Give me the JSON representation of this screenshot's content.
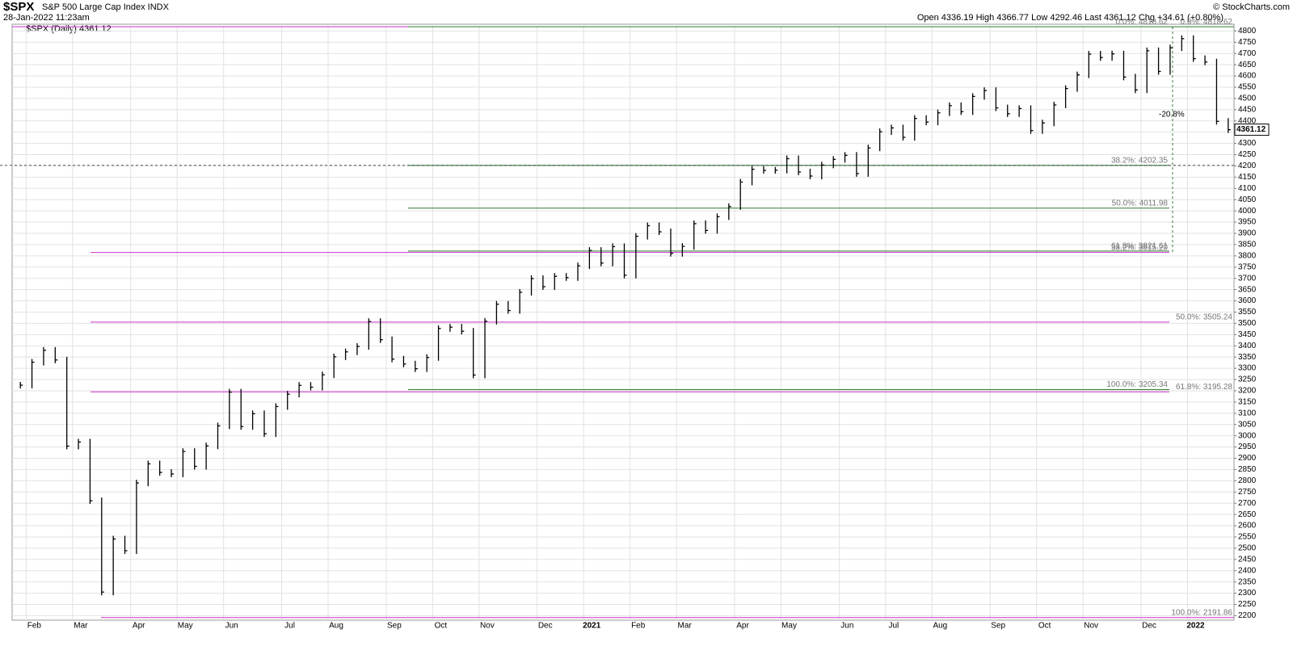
{
  "chart_data": {
    "type": "price-bars",
    "symbol": "$SPX",
    "name": "S&P 500 Large Cap Index INDX",
    "date": "28-Jan-2022 11:23am",
    "quote": "Open 4336.19 High 4366.77 Low 4292.46 Last 4361.12 Chg +34.61 (+0.80%)",
    "copyright": "© StockCharts.com",
    "last_price": 4361.12,
    "annotation": "-20.8%",
    "categories": [
      null,
      "Feb",
      null,
      null,
      null,
      "Mar",
      null,
      null,
      null,
      null,
      "Apr",
      null,
      null,
      null,
      "May",
      null,
      null,
      null,
      "Jun",
      null,
      null,
      null,
      null,
      "Jul",
      null,
      null,
      null,
      "Aug",
      null,
      null,
      null,
      null,
      "Sep",
      null,
      null,
      null,
      "Oct",
      null,
      null,
      null,
      "Nov",
      null,
      null,
      null,
      null,
      "Dec",
      null,
      null,
      null,
      "2021",
      null,
      null,
      null,
      "Feb",
      null,
      null,
      null,
      "Mar",
      null,
      null,
      null,
      null,
      "Apr",
      null,
      null,
      null,
      "May",
      null,
      null,
      null,
      null,
      "Jun",
      null,
      null,
      null,
      "Jul",
      null,
      null,
      null,
      "Aug",
      null,
      null,
      null,
      null,
      "Sep",
      null,
      null,
      null,
      "Oct",
      null,
      null,
      null,
      "Nov",
      null,
      null,
      null,
      null,
      "Dec",
      null,
      null,
      null,
      "2022",
      null,
      null,
      null
    ],
    "series": [
      {
        "name": "$SPX (Daily) 4361.12",
        "color": "#000000",
        "values": [
          3225,
          3327,
          3380,
          3337,
          2954,
          2972,
          2711,
          2305,
          2541,
          2489,
          2790,
          2875,
          2837,
          2830,
          2930,
          2864,
          2955,
          3044,
          3194,
          3041,
          3098,
          3009,
          3130,
          3185,
          3224,
          3216,
          3271,
          3351,
          3373,
          3397,
          3508,
          3427,
          3341,
          3319,
          3298,
          3348,
          3477,
          3483,
          3465,
          3270,
          3509,
          3585,
          3557,
          3638,
          3699,
          3663,
          3709,
          3703,
          3756,
          3824,
          3768,
          3841,
          3714,
          3887,
          3934,
          3907,
          3811,
          3842,
          3943,
          3913,
          3974,
          4019,
          4128,
          4185,
          4180,
          4181,
          4232,
          4173,
          4155,
          4204,
          4229,
          4247,
          4166,
          4280,
          4352,
          4369,
          4327,
          4411,
          4395,
          4436,
          4468,
          4441,
          4509,
          4535,
          4458,
          4432,
          4455,
          4357,
          4391,
          4471,
          4544,
          4605,
          4697,
          4682,
          4698,
          4595,
          4538,
          4712,
          4620,
          4725,
          4766,
          4677,
          4662,
          4398,
          4361
        ]
      }
    ],
    "fib_sets": [
      {
        "color": "#2e7d32",
        "levels": [
          {
            "label": "0.0%: 4818.62",
            "value": 4818.62
          },
          {
            "label": "38.2%: 4202.35",
            "value": 4202.35
          },
          {
            "label": "50.0%: 4011.98",
            "value": 4011.98
          },
          {
            "label": "61.8%: 3821.61",
            "value": 3821.61
          },
          {
            "label": "100.0%: 3205.34",
            "value": 3205.34
          }
        ]
      },
      {
        "color": "#cc33cc",
        "levels": [
          {
            "label": "0.0%: 4818.62",
            "value": 4818.62
          },
          {
            "label": "38.2%: 3815.20",
            "value": 3815.2
          },
          {
            "label": "50.0%: 3505.24",
            "value": 3505.24
          },
          {
            "label": "61.8%: 3195.28",
            "value": 3195.28
          },
          {
            "label": "100.0%: 2191.86",
            "value": 2191.86
          }
        ]
      }
    ],
    "ylim": [
      2180,
      4830
    ],
    "yticks": [
      2200,
      2250,
      2300,
      2350,
      2400,
      2450,
      2500,
      2550,
      2600,
      2650,
      2700,
      2750,
      2800,
      2850,
      2900,
      2950,
      3000,
      3050,
      3100,
      3150,
      3200,
      3250,
      3300,
      3350,
      3400,
      3450,
      3500,
      3550,
      3600,
      3650,
      3700,
      3750,
      3800,
      3850,
      3900,
      3950,
      4000,
      4050,
      4100,
      4150,
      4200,
      4250,
      4300,
      4350,
      4400,
      4450,
      4500,
      4550,
      4600,
      4650,
      4700,
      4750,
      4800
    ],
    "grid": true
  }
}
